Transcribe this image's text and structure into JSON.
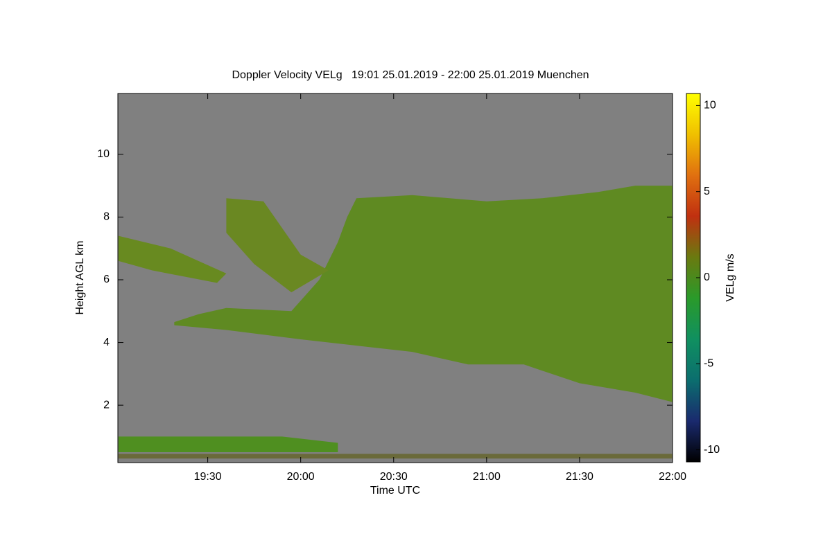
{
  "chart_data": {
    "type": "time-height",
    "title": "Doppler Velocity VELg   19:01 25.01.2019 - 22:00 25.01.2019 Muenchen",
    "x_label": "Time UTC",
    "y_label": "Height AGL km",
    "colorbar_label": "VELg m/s",
    "xlim": [
      19.0167,
      22.0
    ],
    "xticks": [
      {
        "value": 19.5,
        "label": "19:30"
      },
      {
        "value": 20.0,
        "label": "20:00"
      },
      {
        "value": 20.5,
        "label": "20:30"
      },
      {
        "value": 21.0,
        "label": "21:00"
      },
      {
        "value": 21.5,
        "label": "21:30"
      },
      {
        "value": 22.0,
        "label": "22:00"
      }
    ],
    "ylim": [
      0.17,
      11.94
    ],
    "yticks": [
      2,
      4,
      6,
      8,
      10
    ],
    "clim": [
      -10.7,
      10.7
    ],
    "cticks": [
      10,
      5,
      0,
      -5,
      -10
    ],
    "colormap": [
      "#000000",
      "#1a2a6e",
      "#0b6e6e",
      "#109060",
      "#2a9a2a",
      "#6a7a10",
      "#c03010",
      "#e07010",
      "#f0c000",
      "#ffff00"
    ],
    "background": "#808080",
    "echo_regions": [
      {
        "color": "#5f8a22",
        "x": [
          19.32,
          19.6,
          20.0,
          20.3,
          20.6,
          20.9,
          21.2,
          21.3,
          21.5,
          21.8,
          22.0,
          22.0,
          21.8,
          21.6,
          21.3,
          21.0,
          20.6,
          20.3,
          20.25,
          20.2,
          20.1,
          19.95,
          19.6,
          19.45,
          19.32
        ],
        "y": [
          4.55,
          4.4,
          4.1,
          3.9,
          3.7,
          3.3,
          3.3,
          3.1,
          2.7,
          2.4,
          2.1,
          9.0,
          9.0,
          8.8,
          8.6,
          8.5,
          8.7,
          8.6,
          8.0,
          7.2,
          6.0,
          5.0,
          5.1,
          4.9,
          4.65
        ]
      },
      {
        "color": "#688a20",
        "x": [
          19.02,
          19.3,
          19.6,
          19.55,
          19.2,
          19.02
        ],
        "y": [
          7.4,
          7.0,
          6.2,
          5.9,
          6.3,
          6.6
        ]
      },
      {
        "color": "#6a8822",
        "x": [
          19.6,
          19.8,
          20.0,
          20.15,
          19.95,
          19.75,
          19.6
        ],
        "y": [
          8.6,
          8.5,
          6.8,
          6.3,
          5.6,
          6.5,
          7.5
        ]
      },
      {
        "color": "#4f8f20",
        "x": [
          19.02,
          19.5,
          19.9,
          20.2,
          20.2,
          19.02
        ],
        "y": [
          1.0,
          1.0,
          1.0,
          0.8,
          0.5,
          0.5
        ]
      },
      {
        "color": "#6a6a3a",
        "x": [
          19.02,
          22.0,
          22.0,
          19.02
        ],
        "y": [
          0.45,
          0.45,
          0.3,
          0.3
        ]
      }
    ]
  }
}
